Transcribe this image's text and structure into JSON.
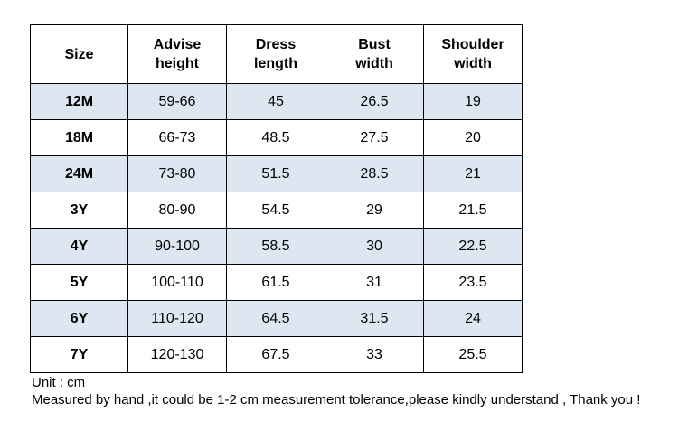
{
  "table": {
    "headers": [
      [
        "Size"
      ],
      [
        "Advise",
        "height"
      ],
      [
        "Dress",
        "length"
      ],
      [
        "Bust",
        "width"
      ],
      [
        "Shoulder",
        "width"
      ]
    ],
    "rows": [
      [
        "12M",
        "59-66",
        "45",
        "26.5",
        "19"
      ],
      [
        "18M",
        "66-73",
        "48.5",
        "27.5",
        "20"
      ],
      [
        "24M",
        "73-80",
        "51.5",
        "28.5",
        "21"
      ],
      [
        "3Y",
        "80-90",
        "54.5",
        "29",
        "21.5"
      ],
      [
        "4Y",
        "90-100",
        "58.5",
        "30",
        "22.5"
      ],
      [
        "5Y",
        "100-110",
        "61.5",
        "31",
        "23.5"
      ],
      [
        "6Y",
        "110-120",
        "64.5",
        "31.5",
        "24"
      ],
      [
        "7Y",
        "120-130",
        "67.5",
        "33",
        "25.5"
      ]
    ],
    "shaded_row_color": "#dde7f1",
    "border_color": "#000000"
  },
  "notes": {
    "unit": "Unit : cm",
    "tolerance": "Measured by hand ,it could be 1-2 cm measurement tolerance,please kindly understand , Thank you !"
  }
}
